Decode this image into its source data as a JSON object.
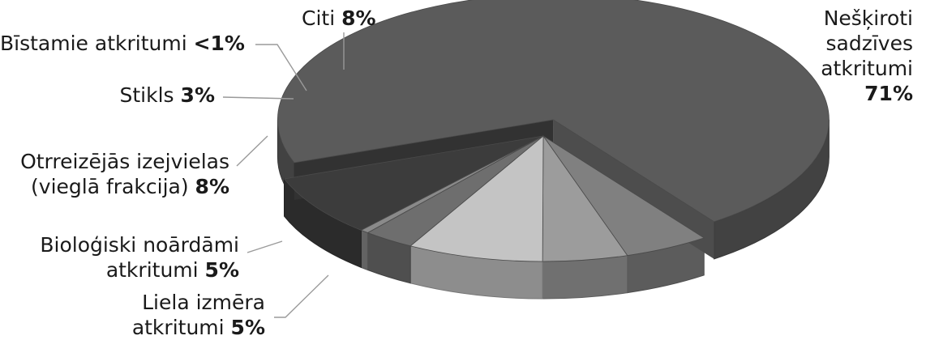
{
  "chart_data": {
    "type": "pie",
    "title": "",
    "slices": [
      {
        "name": "Nešķiroti sadzīves atkritumi",
        "lines": [
          "Nešķiroti",
          "sadzīves",
          "atkritumi"
        ],
        "value": 71,
        "value_label": "71%",
        "color": "#5b5b5b",
        "exploded": true
      },
      {
        "name": "Liela izmēra atkritumi",
        "lines": [
          "Liela izmēra",
          "atkritumi"
        ],
        "value": 5,
        "value_label": "5%",
        "color": "#808080",
        "exploded": false
      },
      {
        "name": "Bioloģiski noārdāmi atkritumi",
        "lines": [
          "Bioloģiski noārdāmi",
          "atkritumi"
        ],
        "value": 5,
        "value_label": "5%",
        "color": "#9c9c9c",
        "exploded": false
      },
      {
        "name": "Otrreizējās izejvielas (vieglā frakcija)",
        "lines": [
          "Otrreizējās izejvielas",
          "(vieglā frakcija)"
        ],
        "value": 8,
        "value_label": "8%",
        "color": "#c4c4c4",
        "exploded": false
      },
      {
        "name": "Stikls",
        "lines": [
          "Stikls"
        ],
        "value": 3,
        "value_label": "3%",
        "color": "#6e6e6e",
        "exploded": false
      },
      {
        "name": "Bīstamie atkritumi",
        "lines": [
          "Bīstamie atkritumi"
        ],
        "value": 0.5,
        "value_label": "<1%",
        "color": "#8a8a8a",
        "exploded": false
      },
      {
        "name": "Citi",
        "lines": [
          "Citi"
        ],
        "value": 8,
        "value_label": "8%",
        "color": "#3c3c3c",
        "exploded": false
      }
    ],
    "style": "3d-exploded",
    "legend": "none"
  }
}
